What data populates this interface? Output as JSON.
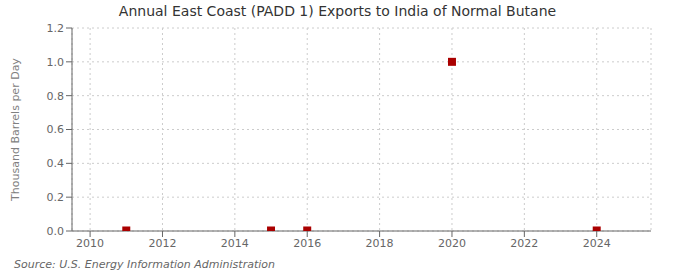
{
  "chart_data": {
    "type": "scatter",
    "title": "Annual East Coast (PADD 1) Exports to India of Normal Butane",
    "ylabel": "Thousand Barrels per Day",
    "annotations": [
      "Source: U.S. Energy Information Administration"
    ],
    "x": [
      2011,
      2015,
      2016,
      2020,
      2024
    ],
    "values": [
      0.003,
      0.003,
      0.003,
      1.0,
      0.003
    ],
    "color": "#aa0000",
    "marker": "square",
    "xlim": [
      2009.5,
      2025.5
    ],
    "ylim": [
      0.0,
      1.2
    ],
    "xticks": [
      2010,
      2012,
      2014,
      2016,
      2018,
      2020,
      2022,
      2024
    ],
    "yticks": [
      {
        "value": 0.0,
        "label": "0.0"
      },
      0.2,
      0.4,
      0.6,
      0.8,
      {
        "value": 1.0,
        "label": "1.0"
      },
      1.2
    ],
    "grid": true
  }
}
